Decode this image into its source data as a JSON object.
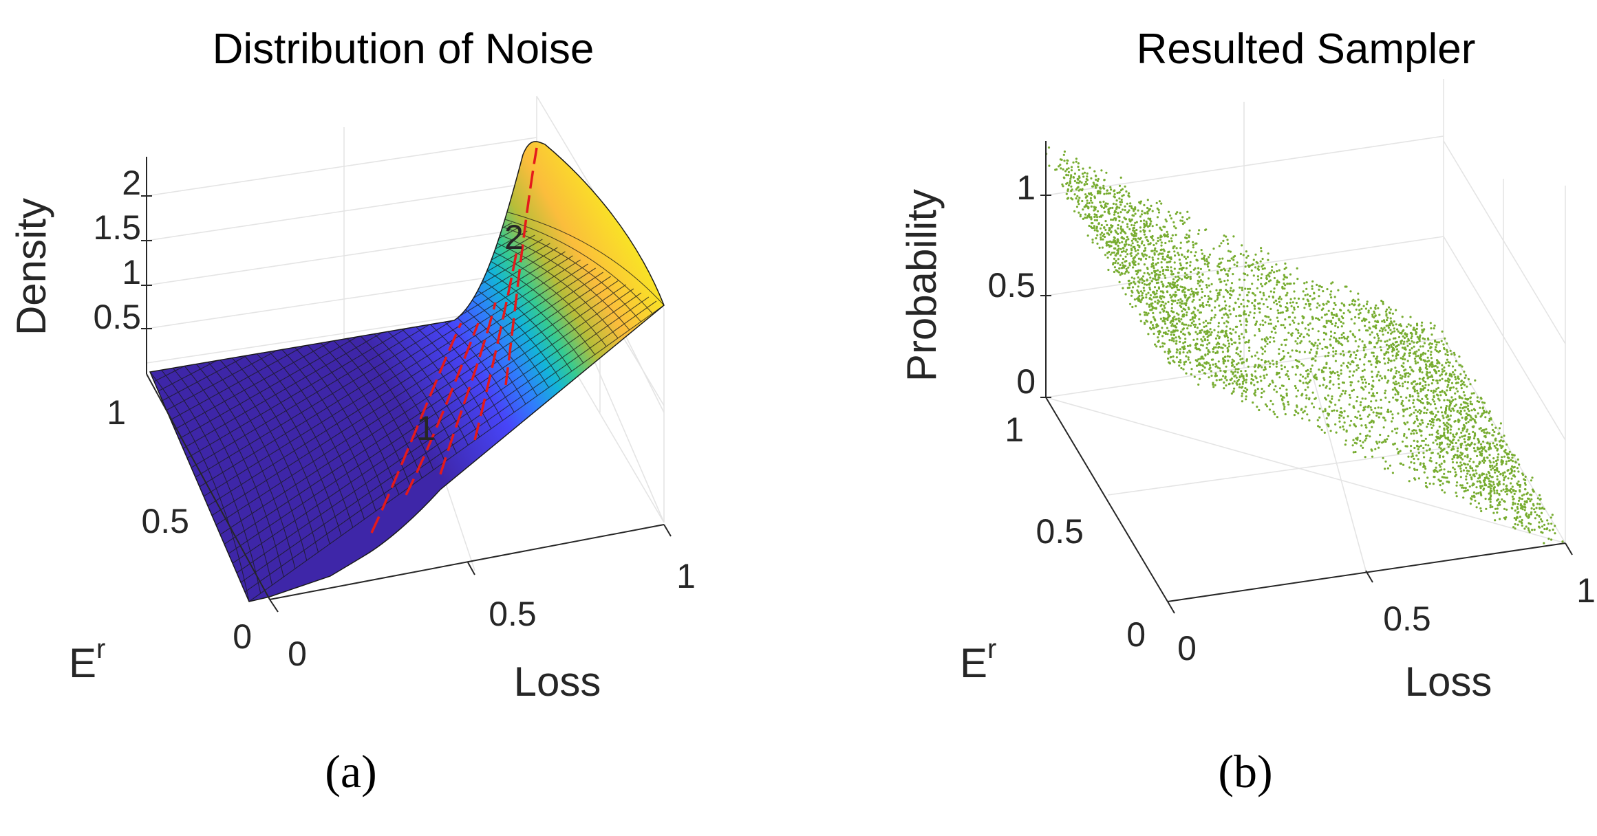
{
  "chart_data": [
    {
      "type": "surface",
      "title": "Distribution of Noise",
      "xlabel": "Loss",
      "ylabel": "E",
      "ylabel_sup": "r",
      "zlabel": "Density",
      "xlim": [
        0,
        1
      ],
      "ylim": [
        0,
        1
      ],
      "zlim": [
        0,
        2.3
      ],
      "x_ticks": [
        "0",
        "0.5",
        "1"
      ],
      "y_ticks": [
        "0",
        "0.5",
        "1"
      ],
      "z_ticks": [
        "0.5",
        "1",
        "1.5",
        "2"
      ],
      "grid": true,
      "colormap": [
        "#3e26a8",
        "#4745f8",
        "#2f7ffc",
        "#13b5d9",
        "#36cb91",
        "#b7bd39",
        "#fbbd3c",
        "#f9e226"
      ],
      "contour_color": "#e41a1c",
      "contour_levels": [
        0.25,
        0.5,
        1,
        1.5,
        2
      ],
      "contour_labels": [
        "1",
        "2"
      ],
      "surface_model": "density rises sharply along the diagonal line where Loss is about 0.2 + 0.3*E^r; near 0 below it, approximately 2.1 above it and falling to about 1.5 at Loss = 1",
      "caption": "(a)"
    },
    {
      "type": "scatter3d",
      "title": "Resulted Sampler",
      "xlabel": "Loss",
      "ylabel": "E",
      "ylabel_sup": "r",
      "zlabel": "Probability",
      "xlim": [
        0,
        1
      ],
      "ylim": [
        0,
        1
      ],
      "zlim": [
        0,
        1.2
      ],
      "x_ticks": [
        "0",
        "0.5",
        "1"
      ],
      "y_ticks": [
        "0",
        "0.5",
        "1"
      ],
      "z_ticks": [
        "0",
        "0.5",
        "1"
      ],
      "grid": true,
      "marker_color": "#77ac30",
      "distribution": "points follow the plane Probability ≈ 1.2 - 1.2*Loss spread over E^r in [0,1], densest at the two ends, with a thin gap at mid Loss",
      "caption": "(b)"
    }
  ]
}
